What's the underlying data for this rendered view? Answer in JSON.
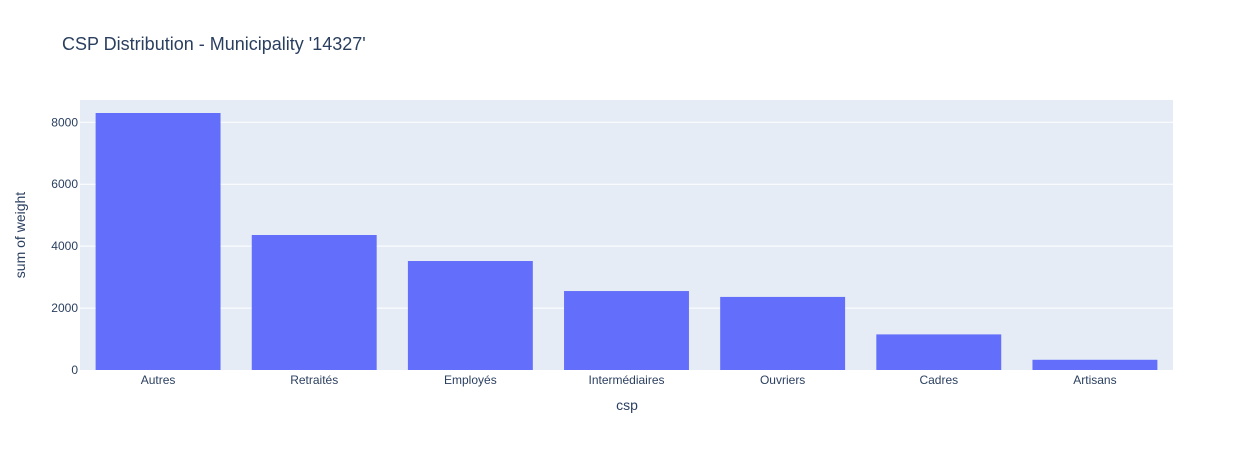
{
  "chart_data": {
    "type": "bar",
    "title": "CSP Distribution - Municipality '14327'",
    "xlabel": "csp",
    "ylabel": "sum of weight",
    "categories": [
      "Autres",
      "Retraités",
      "Employés",
      "Intermédiaires",
      "Ouvriers",
      "Cadres",
      "Artisans"
    ],
    "values": [
      8300,
      4360,
      3520,
      2550,
      2360,
      1150,
      330
    ],
    "ylim": [
      0,
      8720
    ],
    "yticks": [
      0,
      2000,
      4000,
      6000,
      8000
    ],
    "grid": true,
    "legend": "none",
    "colors": {
      "bar": "#636efa",
      "plot_bg": "#e5ecf6",
      "grid": "#ffffff",
      "text": "#2a3f5f"
    }
  }
}
